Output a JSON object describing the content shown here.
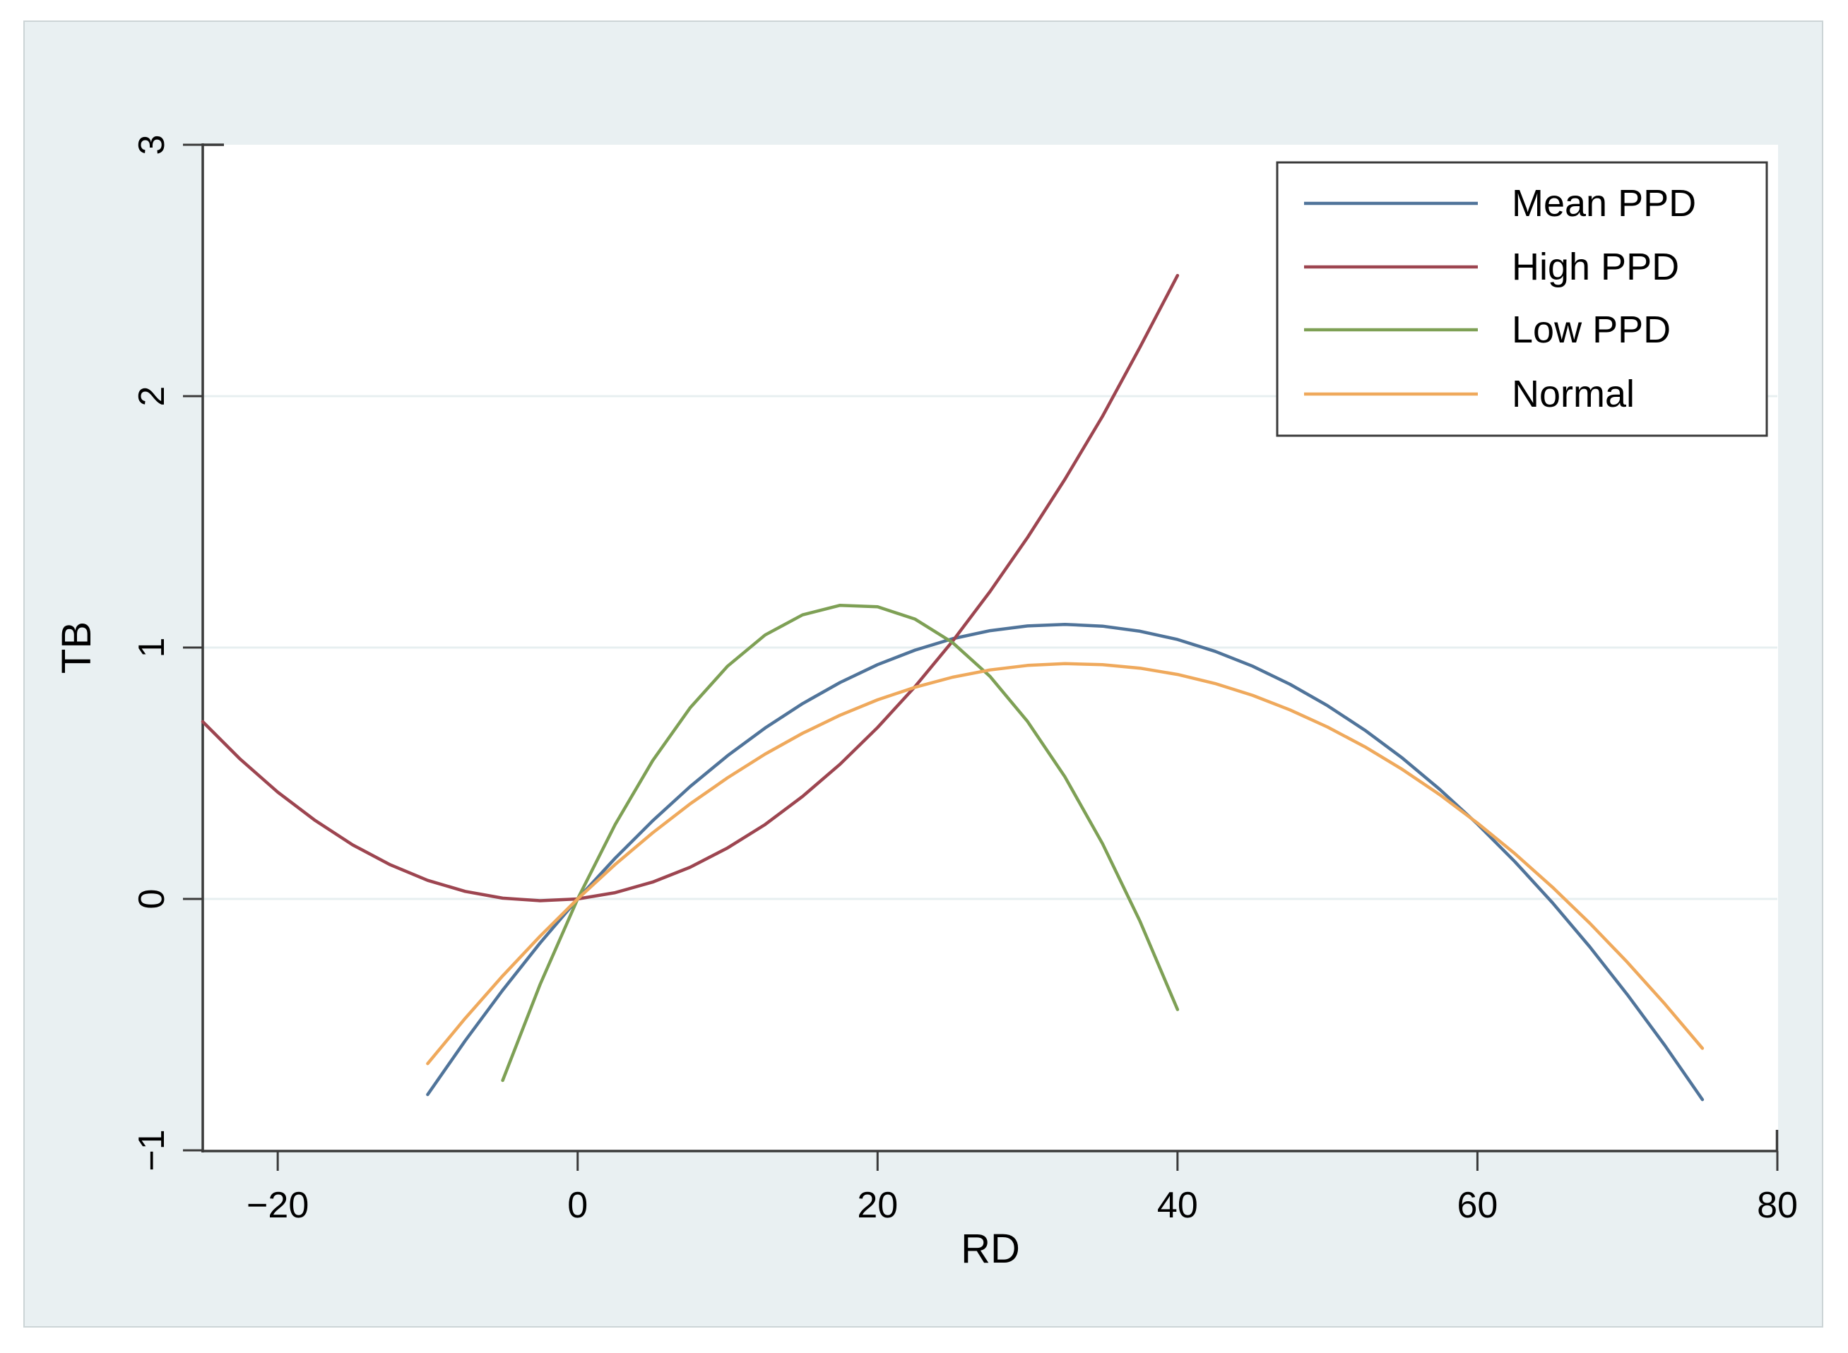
{
  "figure": {
    "background_color": "#ffffff",
    "panel_color": "#e9f0f2",
    "panel_border_color": "#ccd4d6",
    "plot_background": "#ffffff",
    "axis_color": "#3a3a3a",
    "gridline_color": "#e7eff0",
    "text_color": "#000000"
  },
  "legend": {
    "border_color": "#3a3a3a",
    "fill": "#ffffff",
    "position": "top-right"
  },
  "chart_data": {
    "type": "line",
    "title": "",
    "xlabel": "RD",
    "ylabel": "TB",
    "xlim": [
      -25,
      80
    ],
    "ylim": [
      -1,
      3
    ],
    "x_ticks": [
      -20,
      0,
      20,
      40,
      60,
      80
    ],
    "x_tick_labels": [
      "−20",
      "0",
      "20",
      "40",
      "60",
      "80"
    ],
    "y_ticks": [
      -1,
      0,
      1,
      2,
      3
    ],
    "y_tick_labels": [
      "−1",
      "0",
      "1",
      "2",
      "3"
    ],
    "grid": "horizontal gridlines at y = 0, 1, 2 (very light)",
    "legend_position": "top-right box",
    "series": [
      {
        "name": "Mean PPD",
        "color": "#50749a",
        "points": [
          [
            -10,
            -0.778
          ],
          [
            -7.5,
            -0.564
          ],
          [
            -5,
            -0.363
          ],
          [
            -2.5,
            -0.175
          ],
          [
            0,
            0
          ],
          [
            2.5,
            0.162
          ],
          [
            5,
            0.311
          ],
          [
            7.5,
            0.447
          ],
          [
            10,
            0.57
          ],
          [
            12.5,
            0.68
          ],
          [
            15,
            0.777
          ],
          [
            17.5,
            0.861
          ],
          [
            20,
            0.932
          ],
          [
            22.5,
            0.99
          ],
          [
            25,
            1.035
          ],
          [
            27.5,
            1.067
          ],
          [
            30,
            1.086
          ],
          [
            32.5,
            1.092
          ],
          [
            35,
            1.085
          ],
          [
            37.5,
            1.065
          ],
          [
            40,
            1.032
          ],
          [
            42.5,
            0.985
          ],
          [
            45,
            0.926
          ],
          [
            47.5,
            0.854
          ],
          [
            50,
            0.769
          ],
          [
            52.5,
            0.671
          ],
          [
            55,
            0.56
          ],
          [
            57.5,
            0.435
          ],
          [
            60,
            0.298
          ],
          [
            62.5,
            0.148
          ],
          [
            65,
            -0.015
          ],
          [
            67.5,
            -0.191
          ],
          [
            70,
            -0.381
          ],
          [
            72.5,
            -0.583
          ],
          [
            75,
            -0.798
          ]
        ]
      },
      {
        "name": "High PPD",
        "color": "#9d4550",
        "points": [
          [
            -25,
            0.705
          ],
          [
            -22.5,
            0.556
          ],
          [
            -20,
            0.425
          ],
          [
            -17.5,
            0.312
          ],
          [
            -15,
            0.215
          ],
          [
            -12.5,
            0.136
          ],
          [
            -10,
            0.074
          ],
          [
            -7.5,
            0.03
          ],
          [
            -5,
            0.003
          ],
          [
            -2.5,
            -0.007
          ],
          [
            0,
            0
          ],
          [
            2.5,
            0.025
          ],
          [
            5,
            0.067
          ],
          [
            7.5,
            0.126
          ],
          [
            10,
            0.203
          ],
          [
            12.5,
            0.296
          ],
          [
            15,
            0.408
          ],
          [
            17.5,
            0.536
          ],
          [
            20,
            0.682
          ],
          [
            22.5,
            0.845
          ],
          [
            25,
            1.025
          ],
          [
            27.5,
            1.223
          ],
          [
            30,
            1.438
          ],
          [
            32.5,
            1.67
          ],
          [
            35,
            1.92
          ],
          [
            37.5,
            2.195
          ],
          [
            40,
            2.48
          ]
        ]
      },
      {
        "name": "Low PPD",
        "color": "#7ea055",
        "points": [
          [
            -5,
            -0.722
          ],
          [
            -2.5,
            -0.34
          ],
          [
            0,
            0
          ],
          [
            2.5,
            0.296
          ],
          [
            5,
            0.55
          ],
          [
            7.5,
            0.76
          ],
          [
            10,
            0.926
          ],
          [
            12.5,
            1.05
          ],
          [
            15,
            1.13
          ],
          [
            17.5,
            1.168
          ],
          [
            20,
            1.162
          ],
          [
            22.5,
            1.113
          ],
          [
            25,
            1.02
          ],
          [
            27.5,
            0.885
          ],
          [
            30,
            0.706
          ],
          [
            32.5,
            0.485
          ],
          [
            35,
            0.22
          ],
          [
            37.5,
            -0.089
          ],
          [
            40,
            -0.44
          ]
        ]
      },
      {
        "name": "Normal",
        "color": "#efa95c",
        "points": [
          [
            -10,
            -0.655
          ],
          [
            -7.5,
            -0.475
          ],
          [
            -5,
            -0.306
          ],
          [
            -2.5,
            -0.148
          ],
          [
            0,
            0
          ],
          [
            2.5,
            0.137
          ],
          [
            5,
            0.263
          ],
          [
            7.5,
            0.378
          ],
          [
            10,
            0.482
          ],
          [
            12.5,
            0.576
          ],
          [
            15,
            0.659
          ],
          [
            17.5,
            0.731
          ],
          [
            20,
            0.792
          ],
          [
            22.5,
            0.842
          ],
          [
            25,
            0.882
          ],
          [
            27.5,
            0.911
          ],
          [
            30,
            0.929
          ],
          [
            32.5,
            0.936
          ],
          [
            35,
            0.932
          ],
          [
            37.5,
            0.918
          ],
          [
            40,
            0.893
          ],
          [
            42.5,
            0.857
          ],
          [
            45,
            0.81
          ],
          [
            47.5,
            0.752
          ],
          [
            50,
            0.684
          ],
          [
            52.5,
            0.605
          ],
          [
            55,
            0.515
          ],
          [
            57.5,
            0.414
          ],
          [
            60,
            0.302
          ],
          [
            62.5,
            0.18
          ],
          [
            65,
            0.047
          ],
          [
            67.5,
            -0.097
          ],
          [
            70,
            -0.252
          ],
          [
            72.5,
            -0.418
          ],
          [
            75,
            -0.594
          ]
        ]
      }
    ]
  }
}
